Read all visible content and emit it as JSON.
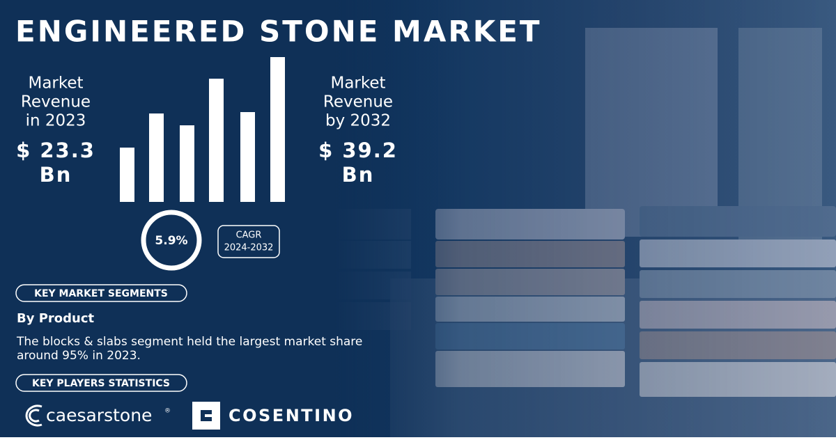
{
  "title": "ENGINEERED STONE MARKET",
  "revenue_2023": {
    "label_lines": [
      "Market",
      "Revenue",
      "in 2023"
    ],
    "value_lines": [
      "$ 23.3",
      "Bn"
    ]
  },
  "revenue_2032": {
    "label_lines": [
      "Market",
      "Revenue",
      "by 2032"
    ],
    "value_lines": [
      "$ 39.2",
      "Bn"
    ]
  },
  "cagr": {
    "value": "5.9%",
    "label_lines": [
      "CAGR",
      "2024-2032"
    ]
  },
  "segments": {
    "heading": "KEY MARKET SEGMENTS",
    "subheading": "By Product",
    "text_lines": [
      "The blocks & slabs segment held the largest market share",
      "around 95% in 2023."
    ]
  },
  "players": {
    "heading": "KEY PLAYERS STATISTICS",
    "logos": [
      "caesarstone",
      "COSENTINO"
    ],
    "registered_mark": "®"
  }
}
